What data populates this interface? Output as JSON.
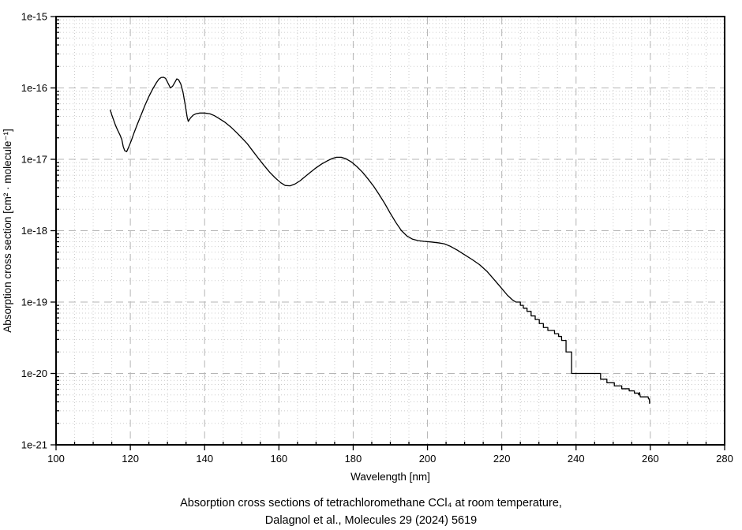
{
  "chart_data": {
    "type": "line",
    "title": "",
    "xlabel": "Wavelength [nm]",
    "ylabel": "Absorption cross section [cm² · molecule⁻¹]",
    "xlim": [
      100,
      280
    ],
    "x_major_ticks": [
      100,
      120,
      140,
      160,
      180,
      200,
      220,
      240,
      260,
      280
    ],
    "x_minor_step": 5,
    "y_scale": "log",
    "ylim": [
      1e-21,
      1e-15
    ],
    "y_major_tick_labels": [
      "1e-15",
      "1e-16",
      "1e-17",
      "1e-18",
      "1e-19",
      "1e-20",
      "1e-21"
    ],
    "grid": {
      "major": "dashed",
      "minor": "dotted",
      "major_color": "#b5b5b5",
      "minor_color": "#cbcbcb"
    },
    "legend": "none",
    "line_color": "#000000",
    "background": "#ffffff",
    "series": [
      {
        "name": "CCl4 absorption cross section",
        "points": [
          [
            114.6,
            4.9e-17
          ],
          [
            115.0,
            4.2e-17
          ],
          [
            115.5,
            3.55e-17
          ],
          [
            116.0,
            3e-17
          ],
          [
            116.6,
            2.55e-17
          ],
          [
            117.2,
            2.2e-17
          ],
          [
            117.7,
            1.9e-17
          ],
          [
            118.1,
            1.5e-17
          ],
          [
            118.5,
            1.32e-17
          ],
          [
            119.0,
            1.28e-17
          ],
          [
            119.6,
            1.5e-17
          ],
          [
            120.3,
            1.85e-17
          ],
          [
            121.0,
            2.35e-17
          ],
          [
            122.0,
            3.2e-17
          ],
          [
            123.0,
            4.3e-17
          ],
          [
            124.0,
            5.8e-17
          ],
          [
            125.0,
            7.6e-17
          ],
          [
            126.0,
            9.6e-17
          ],
          [
            127.0,
            1.18e-16
          ],
          [
            127.7,
            1.33e-16
          ],
          [
            128.3,
            1.4e-16
          ],
          [
            129.0,
            1.41e-16
          ],
          [
            129.5,
            1.36e-16
          ],
          [
            130.1,
            1.18e-16
          ],
          [
            130.8,
            1e-16
          ],
          [
            131.4,
            1.06e-16
          ],
          [
            132.0,
            1.2e-16
          ],
          [
            132.5,
            1.34e-16
          ],
          [
            133.0,
            1.3e-16
          ],
          [
            133.6,
            1.13e-16
          ],
          [
            134.2,
            8.6e-17
          ],
          [
            134.8,
            5.7e-17
          ],
          [
            135.3,
            3.9e-17
          ],
          [
            135.6,
            3.4e-17
          ],
          [
            136.2,
            3.8e-17
          ],
          [
            136.9,
            4.15e-17
          ],
          [
            137.7,
            4.35e-17
          ],
          [
            138.7,
            4.45e-17
          ],
          [
            140.0,
            4.45e-17
          ],
          [
            141.4,
            4.35e-17
          ],
          [
            142.6,
            4.1e-17
          ],
          [
            144.0,
            3.7e-17
          ],
          [
            145.5,
            3.3e-17
          ],
          [
            147.0,
            2.85e-17
          ],
          [
            148.5,
            2.4e-17
          ],
          [
            150.0,
            2e-17
          ],
          [
            151.5,
            1.65e-17
          ],
          [
            153.0,
            1.3e-17
          ],
          [
            154.5,
            1.03e-17
          ],
          [
            156.0,
            8.2e-18
          ],
          [
            157.5,
            6.6e-18
          ],
          [
            159.0,
            5.5e-18
          ],
          [
            160.5,
            4.7e-18
          ],
          [
            161.7,
            4.3e-18
          ],
          [
            163.0,
            4.25e-18
          ],
          [
            164.3,
            4.5e-18
          ],
          [
            165.7,
            5e-18
          ],
          [
            167.0,
            5.7e-18
          ],
          [
            168.5,
            6.6e-18
          ],
          [
            170.0,
            7.6e-18
          ],
          [
            171.5,
            8.6e-18
          ],
          [
            173.0,
            9.5e-18
          ],
          [
            174.4,
            1.03e-17
          ],
          [
            175.5,
            1.07e-17
          ],
          [
            176.8,
            1.07e-17
          ],
          [
            178.0,
            1.02e-17
          ],
          [
            179.5,
            9.2e-18
          ],
          [
            181.0,
            7.9e-18
          ],
          [
            182.5,
            6.6e-18
          ],
          [
            184.0,
            5.3e-18
          ],
          [
            185.5,
            4.2e-18
          ],
          [
            187.0,
            3.2e-18
          ],
          [
            188.5,
            2.4e-18
          ],
          [
            190.0,
            1.75e-18
          ],
          [
            191.5,
            1.3e-18
          ],
          [
            193.0,
            1e-18
          ],
          [
            194.5,
            8.4e-19
          ],
          [
            196.0,
            7.6e-19
          ],
          [
            197.5,
            7.25e-19
          ],
          [
            199.0,
            7.1e-19
          ],
          [
            201.0,
            6.95e-19
          ],
          [
            203.0,
            6.75e-19
          ],
          [
            204.5,
            6.55e-19
          ],
          [
            206.0,
            6.1e-19
          ],
          [
            208.0,
            5.35e-19
          ],
          [
            210.0,
            4.6e-19
          ],
          [
            212.0,
            3.95e-19
          ],
          [
            214.0,
            3.35e-19
          ],
          [
            216.0,
            2.7e-19
          ],
          [
            218.0,
            2.05e-19
          ],
          [
            220.0,
            1.55e-19
          ],
          [
            221.5,
            1.25e-19
          ],
          [
            223.0,
            1.06e-19
          ],
          [
            223.8,
            1e-19
          ],
          [
            225.0,
            1e-19
          ],
          [
            225.0,
            9e-20
          ],
          [
            225.8,
            9e-20
          ],
          [
            225.8,
            8.2e-20
          ],
          [
            226.8,
            8.2e-20
          ],
          [
            226.8,
            7.4e-20
          ],
          [
            227.9,
            7.4e-20
          ],
          [
            227.9,
            6.4e-20
          ],
          [
            229.0,
            6.4e-20
          ],
          [
            229.0,
            5.7e-20
          ],
          [
            230.1,
            5.7e-20
          ],
          [
            230.1,
            5e-20
          ],
          [
            231.2,
            5e-20
          ],
          [
            231.2,
            4.4e-20
          ],
          [
            232.4,
            4.4e-20
          ],
          [
            232.4,
            4e-20
          ],
          [
            234.2,
            4e-20
          ],
          [
            234.2,
            3.6e-20
          ],
          [
            235.3,
            3.6e-20
          ],
          [
            235.3,
            3.3e-20
          ],
          [
            236.1,
            3.3e-20
          ],
          [
            236.1,
            2.9e-20
          ],
          [
            237.3,
            2.9e-20
          ],
          [
            237.3,
            2e-20
          ],
          [
            238.8,
            2e-20
          ],
          [
            238.8,
            1e-20
          ],
          [
            246.6,
            1e-20
          ],
          [
            246.6,
            8.3e-21
          ],
          [
            248.3,
            8.3e-21
          ],
          [
            248.3,
            7.4e-21
          ],
          [
            250.3,
            7.4e-21
          ],
          [
            250.3,
            6.7e-21
          ],
          [
            252.3,
            6.7e-21
          ],
          [
            252.3,
            6.1e-21
          ],
          [
            254.3,
            6.1e-21
          ],
          [
            254.3,
            5.7e-21
          ],
          [
            255.7,
            5.7e-21
          ],
          [
            255.7,
            5.3e-21
          ],
          [
            256.7,
            5.3e-21
          ],
          [
            256.9,
            5e-21
          ],
          [
            257.1,
            5.4e-21
          ],
          [
            257.3,
            4.7e-21
          ],
          [
            259.4,
            4.7e-21
          ],
          [
            259.5,
            4.4e-21
          ],
          [
            259.7,
            4.4e-21
          ],
          [
            259.8,
            3.8e-21
          ]
        ]
      }
    ]
  },
  "caption": {
    "line1": "Absorption cross sections of tetrachloromethane CCl₄ at room temperature,",
    "line2": "Dalagnol et al., Molecules 29 (2024) 5619"
  }
}
